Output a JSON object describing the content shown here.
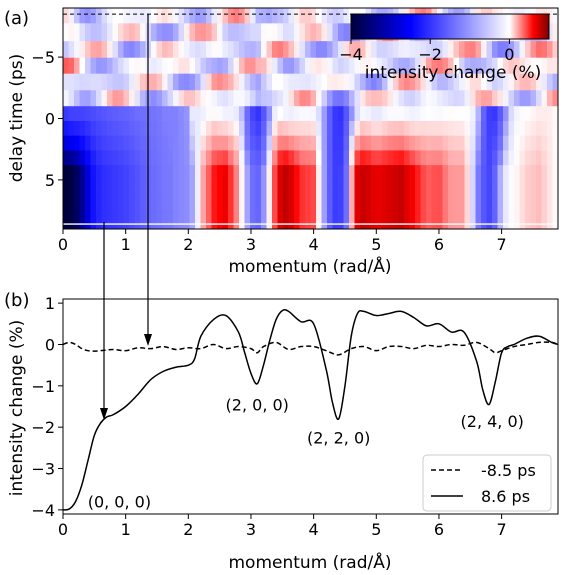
{
  "chart_data": [
    {
      "panel_label": "(a)",
      "type": "heatmap",
      "xlabel": "momentum (rad/Å)",
      "ylabel": "delay time (ps)",
      "xlim": [
        0,
        7.9
      ],
      "ylim": [
        -9,
        9
      ],
      "y_inverted": true,
      "xticks": [
        0,
        1,
        2,
        3,
        4,
        5,
        6,
        7
      ],
      "yticks": [
        -5,
        0,
        5
      ],
      "colorbar": {
        "label": "intensity change (%)",
        "range": [
          -4,
          1
        ],
        "ticks": [
          -4,
          -2,
          0
        ],
        "colors": [
          "#00003a",
          "#0000ff",
          "#ffffff",
          "#ff0000",
          "#7a0000"
        ],
        "placement": "top-right"
      },
      "delays": [
        -8.5,
        -7,
        -5.6,
        -4.3,
        -3,
        -1.6,
        -0.4,
        0.8,
        2,
        3.2,
        4.4,
        5.6,
        6.8,
        8,
        8.6
      ],
      "cut_lines_delay": [
        -8.5,
        8.6
      ],
      "dip_positions": [
        3.1,
        4.4,
        6.85
      ]
    },
    {
      "panel_label": "(b)",
      "type": "line",
      "xlabel": "momentum (rad/Å)",
      "ylabel": "intensity change (%)",
      "xlim": [
        0,
        7.9
      ],
      "ylim": [
        -4.1,
        1.1
      ],
      "xticks": [
        0,
        1,
        2,
        3,
        4,
        5,
        6,
        7
      ],
      "yticks": [
        -4,
        -3,
        -2,
        -1,
        0,
        1
      ],
      "legend": "bottom-right",
      "series": [
        {
          "name": "-8.5 ps",
          "style": "dashed",
          "x": [
            0,
            0.1,
            0.2,
            0.3,
            0.4,
            0.5,
            0.6,
            0.8,
            1.0,
            1.2,
            1.4,
            1.6,
            1.8,
            2.0,
            2.2,
            2.4,
            2.6,
            2.8,
            3.0,
            3.1,
            3.2,
            3.4,
            3.6,
            3.8,
            4.0,
            4.2,
            4.4,
            4.6,
            4.8,
            5.0,
            5.2,
            5.4,
            5.6,
            5.8,
            6.0,
            6.2,
            6.4,
            6.6,
            6.8,
            6.9,
            7.0,
            7.2,
            7.4,
            7.6,
            7.8,
            7.9
          ],
          "y": [
            0.0,
            0.05,
            0.0,
            -0.1,
            -0.15,
            -0.16,
            -0.15,
            -0.12,
            -0.15,
            -0.08,
            -0.1,
            -0.05,
            -0.12,
            -0.08,
            -0.1,
            0.0,
            -0.1,
            -0.05,
            -0.1,
            -0.2,
            -0.05,
            0.05,
            -0.12,
            -0.05,
            -0.05,
            -0.15,
            -0.25,
            -0.1,
            -0.05,
            -0.15,
            -0.05,
            -0.05,
            -0.1,
            -0.02,
            -0.05,
            0.0,
            -0.02,
            0.05,
            -0.1,
            -0.2,
            -0.15,
            -0.05,
            0.0,
            0.05,
            0.05,
            0.0
          ]
        },
        {
          "name": "8.6 ps",
          "style": "solid",
          "x": [
            0,
            0.1,
            0.2,
            0.3,
            0.4,
            0.5,
            0.6,
            0.7,
            0.8,
            1.0,
            1.2,
            1.4,
            1.6,
            1.8,
            2.0,
            2.1,
            2.2,
            2.4,
            2.6,
            2.8,
            2.9,
            3.0,
            3.1,
            3.2,
            3.3,
            3.4,
            3.5,
            3.6,
            3.8,
            4.0,
            4.2,
            4.3,
            4.4,
            4.5,
            4.6,
            4.7,
            4.8,
            5.0,
            5.2,
            5.4,
            5.6,
            5.8,
            6.0,
            6.2,
            6.4,
            6.6,
            6.7,
            6.8,
            6.9,
            7.0,
            7.1,
            7.2,
            7.4,
            7.6,
            7.8,
            7.9
          ],
          "y": [
            -4.0,
            -3.98,
            -3.8,
            -3.4,
            -2.8,
            -2.2,
            -1.9,
            -1.75,
            -1.7,
            -1.5,
            -1.2,
            -0.85,
            -0.65,
            -0.55,
            -0.5,
            -0.35,
            0.2,
            0.6,
            0.7,
            0.3,
            -0.2,
            -0.7,
            -0.95,
            -0.5,
            0.1,
            0.6,
            0.82,
            0.8,
            0.55,
            0.5,
            -0.6,
            -1.4,
            -1.8,
            -1.0,
            0.2,
            0.75,
            0.8,
            0.7,
            0.75,
            0.8,
            0.65,
            0.45,
            0.5,
            0.3,
            0.3,
            -0.4,
            -1.1,
            -1.45,
            -0.9,
            -0.2,
            -0.05,
            0.0,
            0.15,
            0.2,
            0.05,
            0.0
          ]
        }
      ],
      "annotations": [
        {
          "text": "(0, 0, 0)",
          "x": 0.9,
          "y": -3.8
        },
        {
          "text": "(2, 0, 0)",
          "x": 3.1,
          "y": -1.45
        },
        {
          "text": "(2, 2, 0)",
          "x": 4.4,
          "y": -2.25
        },
        {
          "text": "(2, 4, 0)",
          "x": 6.85,
          "y": -1.85
        }
      ]
    }
  ]
}
